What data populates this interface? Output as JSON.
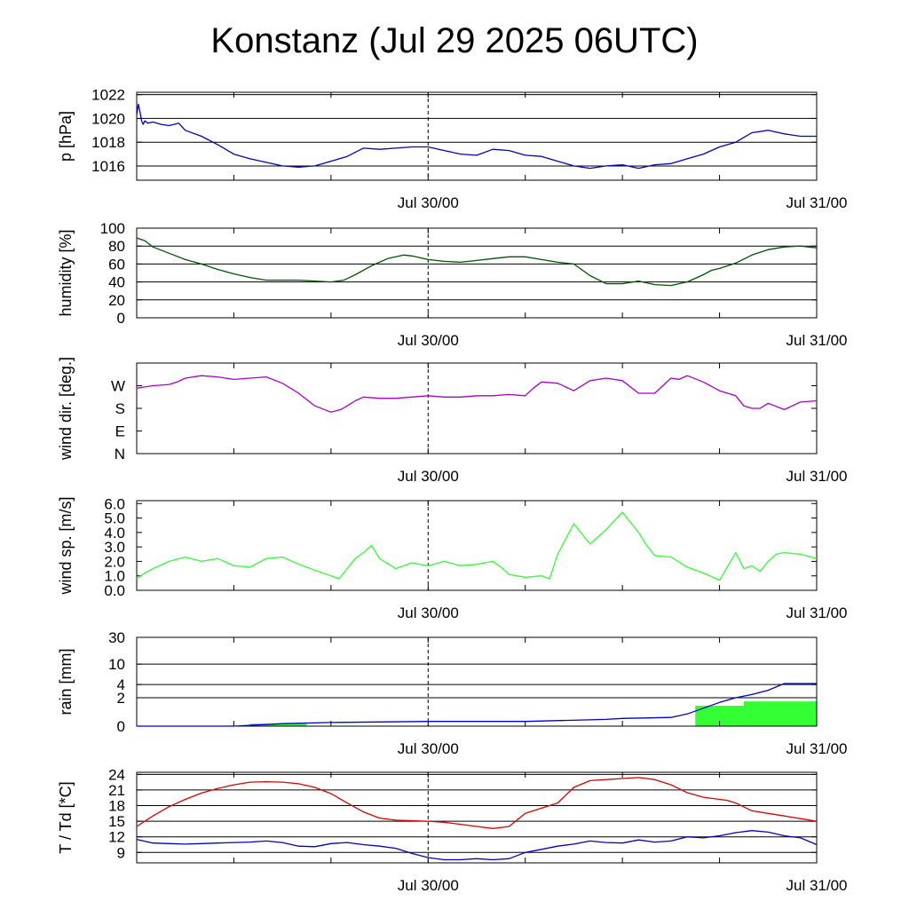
{
  "title": "Konstanz (Jul 29 2025 06UTC)",
  "chart_data": [
    {
      "type": "line",
      "ylabel": "p [hPa]",
      "ylim": [
        1014.8,
        1022.2
      ],
      "yticks": [
        1016,
        1018,
        1020,
        1022
      ],
      "ytick_labels": [
        "1016",
        "1018",
        "1020",
        "1022"
      ],
      "grid": true,
      "xlim": [
        0,
        42
      ],
      "xtick_labels": [
        {
          "x": 18,
          "label": "Jul 30/00"
        },
        {
          "x": 42,
          "label": "Jul 31/00"
        }
      ],
      "series": [
        {
          "color": "#0000cc",
          "x": [
            0,
            0.1,
            0.2,
            0.3,
            0.4,
            0.5,
            0.7,
            1,
            1.5,
            2,
            2.6,
            3,
            4,
            5,
            6,
            7,
            8,
            9,
            10,
            11,
            12,
            13,
            14,
            15,
            16,
            17,
            18,
            19,
            20,
            21,
            22,
            23,
            24,
            25,
            26,
            27,
            28,
            29,
            30,
            31,
            32,
            33,
            34,
            35,
            36,
            37,
            37.5,
            38,
            39,
            40,
            41,
            42
          ],
          "y": [
            1020.3,
            1021.2,
            1020.6,
            1019.8,
            1019.5,
            1019.8,
            1019.6,
            1019.7,
            1019.5,
            1019.4,
            1019.6,
            1019.0,
            1018.5,
            1017.8,
            1017.0,
            1016.6,
            1016.3,
            1016.0,
            1015.9,
            1016.0,
            1016.4,
            1016.8,
            1017.5,
            1017.4,
            1017.5,
            1017.6,
            1017.6,
            1017.3,
            1017.0,
            1016.9,
            1017.4,
            1017.3,
            1016.9,
            1016.8,
            1016.4,
            1016.0,
            1015.8,
            1016.0,
            1016.1,
            1015.8,
            1016.1,
            1016.2,
            1016.6,
            1017.0,
            1017.6,
            1018.0,
            1018.4,
            1018.8,
            1019.0,
            1018.7,
            1018.5,
            1018.5
          ]
        }
      ]
    },
    {
      "type": "line",
      "ylabel": "humidity [%]",
      "ylim": [
        0,
        100
      ],
      "yticks": [
        0,
        20,
        40,
        60,
        80,
        100
      ],
      "ytick_labels": [
        "0",
        "20",
        "40",
        "60",
        "80",
        "100"
      ],
      "grid": true,
      "xlim": [
        0,
        42
      ],
      "xtick_labels": [
        {
          "x": 18,
          "label": "Jul 30/00"
        },
        {
          "x": 42,
          "label": "Jul 31/00"
        }
      ],
      "series": [
        {
          "color": "#005500",
          "x": [
            0,
            0.5,
            1,
            2,
            3,
            4,
            5,
            6,
            7,
            8,
            9,
            10,
            11,
            12,
            12.8,
            13.5,
            14.5,
            15.5,
            16.5,
            17,
            18,
            19,
            20,
            21,
            22,
            23,
            24,
            25,
            26,
            27,
            28,
            29,
            30,
            31,
            32,
            33,
            34,
            35,
            35.5,
            36,
            37,
            38,
            39,
            40,
            41,
            42
          ],
          "y": [
            89,
            86,
            79,
            72,
            65,
            60,
            54,
            49,
            45,
            42,
            42,
            42,
            41,
            40,
            42,
            48,
            58,
            66,
            70,
            69,
            65,
            63,
            62,
            64,
            66,
            68,
            68,
            65,
            62,
            60,
            47,
            38,
            38,
            41,
            37,
            36,
            40,
            48,
            53,
            55,
            61,
            70,
            76,
            79,
            80,
            78
          ]
        }
      ]
    },
    {
      "type": "line",
      "ylabel": "wind dir. [deg.]",
      "ylim": [
        0,
        360
      ],
      "yticks": [
        0,
        90,
        180,
        270
      ],
      "ytick_labels": [
        "N",
        "E",
        "S",
        "W"
      ],
      "grid": false,
      "xlim": [
        0,
        42
      ],
      "xtick_labels": [
        {
          "x": 18,
          "label": "Jul 30/00"
        },
        {
          "x": 42,
          "label": "Jul 31/00"
        }
      ],
      "series": [
        {
          "color": "#aa00cc",
          "x": [
            0,
            0.5,
            1,
            2,
            2.5,
            3,
            4,
            5,
            6,
            7,
            8,
            9,
            10,
            11,
            12,
            12.6,
            13,
            13.5,
            14,
            15,
            16,
            17,
            18,
            19,
            20,
            21,
            22,
            23,
            24,
            24.5,
            25,
            26,
            27,
            28,
            29,
            30,
            31,
            32,
            33,
            33.5,
            34,
            35,
            36,
            37,
            37.5,
            38,
            38.5,
            39,
            40,
            41,
            42
          ],
          "y": [
            260,
            265,
            270,
            275,
            285,
            300,
            310,
            305,
            295,
            300,
            305,
            280,
            240,
            190,
            165,
            175,
            190,
            210,
            225,
            220,
            220,
            225,
            230,
            225,
            225,
            230,
            230,
            235,
            230,
            260,
            285,
            280,
            250,
            290,
            300,
            290,
            240,
            240,
            300,
            295,
            310,
            285,
            250,
            230,
            190,
            180,
            180,
            200,
            175,
            205,
            210
          ]
        }
      ]
    },
    {
      "type": "line",
      "ylabel": "wind sp. [m/s]",
      "ylim": [
        0,
        6.2
      ],
      "yticks": [
        0,
        1,
        2,
        3,
        4,
        5,
        6
      ],
      "ytick_labels": [
        "0.0",
        "1.0",
        "2.0",
        "3.0",
        "4.0",
        "5.0",
        "6.0"
      ],
      "grid": false,
      "xlim": [
        0,
        42
      ],
      "xtick_labels": [
        {
          "x": 18,
          "label": "Jul 30/00"
        },
        {
          "x": 42,
          "label": "Jul 31/00"
        }
      ],
      "series": [
        {
          "color": "#33ff33",
          "x": [
            0,
            0.5,
            1,
            2,
            3,
            4,
            5,
            6,
            7,
            8,
            9,
            10,
            11,
            12,
            12.5,
            13,
            13.5,
            14,
            14.5,
            15,
            16,
            17,
            18,
            19,
            20,
            21,
            22,
            22.5,
            23,
            24,
            25,
            25.5,
            26,
            27,
            28,
            29,
            30,
            31,
            31.5,
            32,
            33,
            34,
            35,
            36,
            37,
            37.5,
            38,
            38.5,
            39,
            39.5,
            40,
            41,
            42
          ],
          "y": [
            0.8,
            1.2,
            1.5,
            2.0,
            2.3,
            2.0,
            2.2,
            1.7,
            1.6,
            2.2,
            2.3,
            1.8,
            1.4,
            1.0,
            0.8,
            1.5,
            2.2,
            2.6,
            3.1,
            2.2,
            1.5,
            1.9,
            1.7,
            2.0,
            1.7,
            1.8,
            2.0,
            1.6,
            1.1,
            0.9,
            1.0,
            0.8,
            2.5,
            4.6,
            3.2,
            4.2,
            5.4,
            4.0,
            3.1,
            2.4,
            2.3,
            1.6,
            1.2,
            0.7,
            2.6,
            1.5,
            1.7,
            1.3,
            2.0,
            2.5,
            2.6,
            2.5,
            2.2
          ]
        }
      ]
    },
    {
      "type": "area",
      "ylabel": "rain [mm]",
      "ylim": [
        0,
        30
      ],
      "yticks": [
        0,
        2,
        4,
        10,
        30
      ],
      "ytick_labels": [
        "0",
        "2",
        "4",
        "10",
        "30"
      ],
      "grid": true,
      "xlim": [
        0,
        42
      ],
      "xtick_labels": [
        {
          "x": 18,
          "label": "Jul 30/00"
        },
        {
          "x": 42,
          "label": "Jul 31/00"
        }
      ],
      "series": [
        {
          "color": "#0000cc",
          "x": [
            0,
            6,
            9,
            12,
            18,
            24,
            29,
            30,
            33,
            34,
            35,
            36,
            37,
            38,
            39,
            40,
            41,
            42
          ],
          "y": [
            0,
            0,
            0.1,
            0.15,
            0.2,
            0.2,
            0.3,
            0.35,
            0.4,
            0.6,
            1.0,
            1.5,
            2.0,
            2.4,
            3.0,
            4.2,
            4.2,
            4.2
          ]
        },
        {
          "color": "#33ff33",
          "x": [
            7,
            10.5,
            34.5,
            37.5,
            37.5,
            42
          ],
          "y": [
            0.1,
            0.1,
            1.2,
            1.2,
            1.6,
            1.6
          ]
        }
      ]
    },
    {
      "type": "line",
      "ylabel": "T / Td [*C]",
      "ylim": [
        7,
        24.4
      ],
      "yticks": [
        9,
        12,
        15,
        18,
        21,
        24
      ],
      "ytick_labels": [
        "9",
        "12",
        "15",
        "18",
        "21",
        "24"
      ],
      "grid": true,
      "xlim": [
        0,
        42
      ],
      "xtick_labels": [
        {
          "x": 18,
          "label": "Jul 30/00"
        },
        {
          "x": 42,
          "label": "Jul 31/00"
        }
      ],
      "series": [
        {
          "name": "T",
          "color": "#dd0000",
          "x": [
            0,
            1,
            2,
            3,
            4,
            5,
            6,
            7,
            8,
            9,
            10,
            11,
            12,
            13,
            14,
            15,
            16,
            17,
            18,
            19,
            20,
            21,
            22,
            23,
            24,
            25,
            26,
            27,
            28,
            29,
            30,
            31,
            32,
            33,
            34,
            35,
            36,
            36.5,
            37,
            38,
            39,
            40,
            41,
            42
          ],
          "y": [
            14.0,
            16.0,
            17.8,
            19.2,
            20.4,
            21.3,
            22.0,
            22.5,
            22.6,
            22.5,
            22.2,
            21.5,
            20.3,
            18.5,
            16.8,
            15.6,
            15.2,
            15.1,
            15.0,
            14.8,
            14.4,
            14.0,
            13.6,
            14.0,
            16.5,
            17.5,
            18.5,
            21.5,
            22.8,
            23.0,
            23.2,
            23.4,
            23.0,
            22.0,
            20.5,
            19.6,
            19.2,
            19.0,
            18.5,
            17.0,
            16.5,
            16.0,
            15.5,
            15.0
          ]
        },
        {
          "name": "Td",
          "color": "#0000cc",
          "x": [
            0,
            1,
            2,
            3,
            4,
            5,
            6,
            7,
            8,
            9,
            10,
            11,
            12,
            13,
            14,
            15,
            16,
            17,
            18,
            19,
            20,
            21,
            22,
            23,
            24,
            25,
            26,
            27,
            28,
            29,
            30,
            31,
            32,
            33,
            34,
            35,
            36,
            37,
            38,
            39,
            40,
            41,
            42
          ],
          "y": [
            11.5,
            10.8,
            10.7,
            10.6,
            10.7,
            10.8,
            10.9,
            11.0,
            11.2,
            10.9,
            10.2,
            10.1,
            10.7,
            10.9,
            10.5,
            10.2,
            9.8,
            8.8,
            8.0,
            7.6,
            7.6,
            7.8,
            7.6,
            7.8,
            9.0,
            9.6,
            10.2,
            10.6,
            11.2,
            10.9,
            10.8,
            11.4,
            11.0,
            11.2,
            12.0,
            11.8,
            12.2,
            12.8,
            13.2,
            12.9,
            12.2,
            11.8,
            10.5
          ]
        }
      ]
    }
  ]
}
